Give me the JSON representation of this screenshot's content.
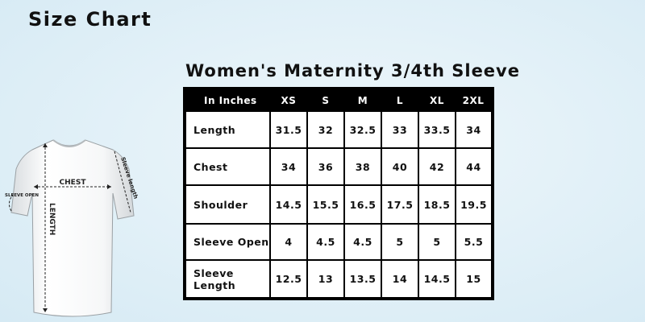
{
  "page_title": "Size Chart",
  "table_title": "Women's Maternity 3/4th Sleeve",
  "diagram": {
    "chest_label": "CHEST",
    "length_label": "LENGTH",
    "sleeve_length_label": "Sleeve length",
    "sleeve_open_label": "SLEEVE OPEN"
  },
  "table": {
    "header": [
      "In Inches",
      "XS",
      "S",
      "M",
      "L",
      "XL",
      "2XL"
    ],
    "rows": [
      {
        "label": "Length",
        "values": [
          "31.5",
          "32",
          "32.5",
          "33",
          "33.5",
          "34"
        ]
      },
      {
        "label": "Chest",
        "values": [
          "34",
          "36",
          "38",
          "40",
          "42",
          "44"
        ]
      },
      {
        "label": "Shoulder",
        "values": [
          "14.5",
          "15.5",
          "16.5",
          "17.5",
          "18.5",
          "19.5"
        ]
      },
      {
        "label": "Sleeve Open",
        "values": [
          "4",
          "4.5",
          "4.5",
          "5",
          "5",
          "5.5"
        ]
      },
      {
        "label": "Sleeve Length",
        "values": [
          "12.5",
          "13",
          "13.5",
          "14",
          "14.5",
          "15"
        ]
      }
    ]
  },
  "colors": {
    "header_background": "#000000",
    "header_text": "#ffffff",
    "page_background": "#e3f1f8"
  }
}
